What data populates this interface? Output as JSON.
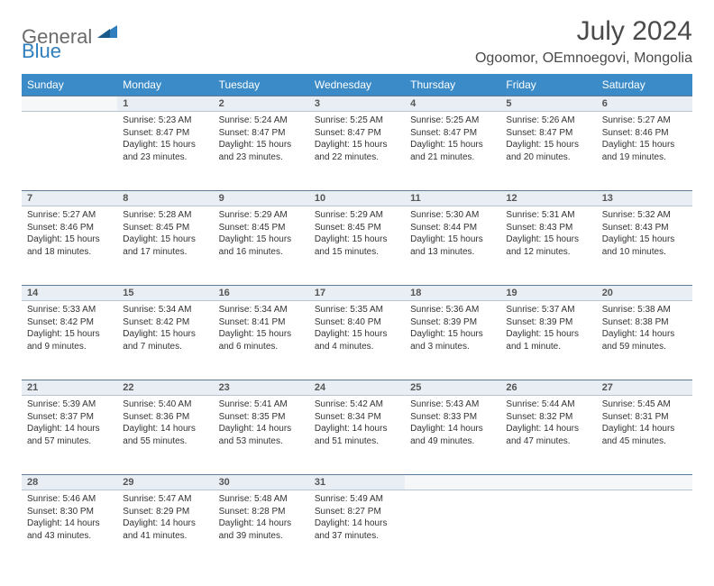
{
  "logo": {
    "text1": "General",
    "text2": "Blue"
  },
  "title": "July 2024",
  "location": "Ogoomor, OEmnoegovi, Mongolia",
  "colors": {
    "header_bg": "#3b8bc8",
    "header_text": "#ffffff",
    "daynum_bg": "#e8eef3",
    "daynum_border_top": "#5a7a95",
    "logo_gray": "#6b6b6b",
    "logo_blue": "#2f7fbf"
  },
  "weekdays": [
    "Sunday",
    "Monday",
    "Tuesday",
    "Wednesday",
    "Thursday",
    "Friday",
    "Saturday"
  ],
  "weeks": [
    [
      null,
      {
        "n": "1",
        "sr": "Sunrise: 5:23 AM",
        "ss": "Sunset: 8:47 PM",
        "dl": "Daylight: 15 hours and 23 minutes."
      },
      {
        "n": "2",
        "sr": "Sunrise: 5:24 AM",
        "ss": "Sunset: 8:47 PM",
        "dl": "Daylight: 15 hours and 23 minutes."
      },
      {
        "n": "3",
        "sr": "Sunrise: 5:25 AM",
        "ss": "Sunset: 8:47 PM",
        "dl": "Daylight: 15 hours and 22 minutes."
      },
      {
        "n": "4",
        "sr": "Sunrise: 5:25 AM",
        "ss": "Sunset: 8:47 PM",
        "dl": "Daylight: 15 hours and 21 minutes."
      },
      {
        "n": "5",
        "sr": "Sunrise: 5:26 AM",
        "ss": "Sunset: 8:47 PM",
        "dl": "Daylight: 15 hours and 20 minutes."
      },
      {
        "n": "6",
        "sr": "Sunrise: 5:27 AM",
        "ss": "Sunset: 8:46 PM",
        "dl": "Daylight: 15 hours and 19 minutes."
      }
    ],
    [
      {
        "n": "7",
        "sr": "Sunrise: 5:27 AM",
        "ss": "Sunset: 8:46 PM",
        "dl": "Daylight: 15 hours and 18 minutes."
      },
      {
        "n": "8",
        "sr": "Sunrise: 5:28 AM",
        "ss": "Sunset: 8:45 PM",
        "dl": "Daylight: 15 hours and 17 minutes."
      },
      {
        "n": "9",
        "sr": "Sunrise: 5:29 AM",
        "ss": "Sunset: 8:45 PM",
        "dl": "Daylight: 15 hours and 16 minutes."
      },
      {
        "n": "10",
        "sr": "Sunrise: 5:29 AM",
        "ss": "Sunset: 8:45 PM",
        "dl": "Daylight: 15 hours and 15 minutes."
      },
      {
        "n": "11",
        "sr": "Sunrise: 5:30 AM",
        "ss": "Sunset: 8:44 PM",
        "dl": "Daylight: 15 hours and 13 minutes."
      },
      {
        "n": "12",
        "sr": "Sunrise: 5:31 AM",
        "ss": "Sunset: 8:43 PM",
        "dl": "Daylight: 15 hours and 12 minutes."
      },
      {
        "n": "13",
        "sr": "Sunrise: 5:32 AM",
        "ss": "Sunset: 8:43 PM",
        "dl": "Daylight: 15 hours and 10 minutes."
      }
    ],
    [
      {
        "n": "14",
        "sr": "Sunrise: 5:33 AM",
        "ss": "Sunset: 8:42 PM",
        "dl": "Daylight: 15 hours and 9 minutes."
      },
      {
        "n": "15",
        "sr": "Sunrise: 5:34 AM",
        "ss": "Sunset: 8:42 PM",
        "dl": "Daylight: 15 hours and 7 minutes."
      },
      {
        "n": "16",
        "sr": "Sunrise: 5:34 AM",
        "ss": "Sunset: 8:41 PM",
        "dl": "Daylight: 15 hours and 6 minutes."
      },
      {
        "n": "17",
        "sr": "Sunrise: 5:35 AM",
        "ss": "Sunset: 8:40 PM",
        "dl": "Daylight: 15 hours and 4 minutes."
      },
      {
        "n": "18",
        "sr": "Sunrise: 5:36 AM",
        "ss": "Sunset: 8:39 PM",
        "dl": "Daylight: 15 hours and 3 minutes."
      },
      {
        "n": "19",
        "sr": "Sunrise: 5:37 AM",
        "ss": "Sunset: 8:39 PM",
        "dl": "Daylight: 15 hours and 1 minute."
      },
      {
        "n": "20",
        "sr": "Sunrise: 5:38 AM",
        "ss": "Sunset: 8:38 PM",
        "dl": "Daylight: 14 hours and 59 minutes."
      }
    ],
    [
      {
        "n": "21",
        "sr": "Sunrise: 5:39 AM",
        "ss": "Sunset: 8:37 PM",
        "dl": "Daylight: 14 hours and 57 minutes."
      },
      {
        "n": "22",
        "sr": "Sunrise: 5:40 AM",
        "ss": "Sunset: 8:36 PM",
        "dl": "Daylight: 14 hours and 55 minutes."
      },
      {
        "n": "23",
        "sr": "Sunrise: 5:41 AM",
        "ss": "Sunset: 8:35 PM",
        "dl": "Daylight: 14 hours and 53 minutes."
      },
      {
        "n": "24",
        "sr": "Sunrise: 5:42 AM",
        "ss": "Sunset: 8:34 PM",
        "dl": "Daylight: 14 hours and 51 minutes."
      },
      {
        "n": "25",
        "sr": "Sunrise: 5:43 AM",
        "ss": "Sunset: 8:33 PM",
        "dl": "Daylight: 14 hours and 49 minutes."
      },
      {
        "n": "26",
        "sr": "Sunrise: 5:44 AM",
        "ss": "Sunset: 8:32 PM",
        "dl": "Daylight: 14 hours and 47 minutes."
      },
      {
        "n": "27",
        "sr": "Sunrise: 5:45 AM",
        "ss": "Sunset: 8:31 PM",
        "dl": "Daylight: 14 hours and 45 minutes."
      }
    ],
    [
      {
        "n": "28",
        "sr": "Sunrise: 5:46 AM",
        "ss": "Sunset: 8:30 PM",
        "dl": "Daylight: 14 hours and 43 minutes."
      },
      {
        "n": "29",
        "sr": "Sunrise: 5:47 AM",
        "ss": "Sunset: 8:29 PM",
        "dl": "Daylight: 14 hours and 41 minutes."
      },
      {
        "n": "30",
        "sr": "Sunrise: 5:48 AM",
        "ss": "Sunset: 8:28 PM",
        "dl": "Daylight: 14 hours and 39 minutes."
      },
      {
        "n": "31",
        "sr": "Sunrise: 5:49 AM",
        "ss": "Sunset: 8:27 PM",
        "dl": "Daylight: 14 hours and 37 minutes."
      },
      null,
      null,
      null
    ]
  ]
}
